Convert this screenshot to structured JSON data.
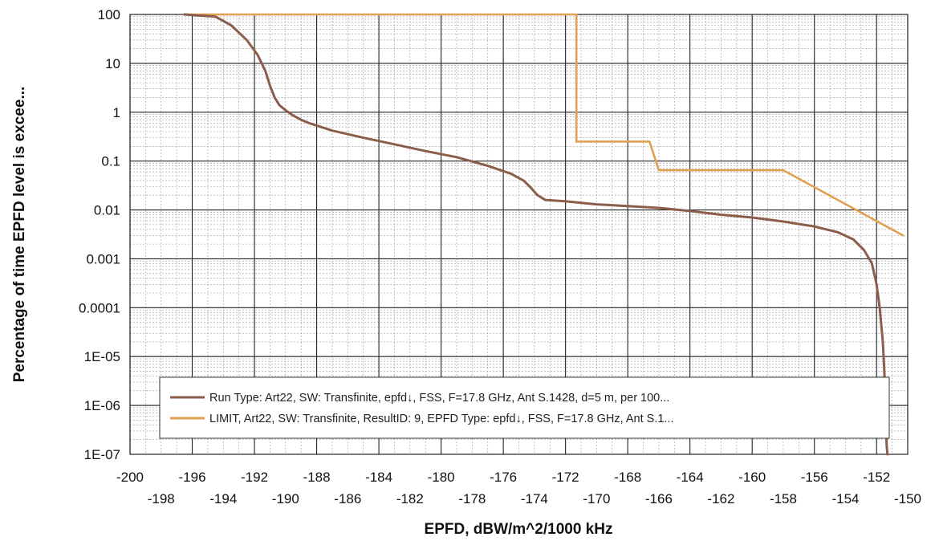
{
  "chart_data": {
    "type": "line",
    "xlabel": "EPFD, dBW/m^2/1000 kHz",
    "ylabel": "Percentage of time EPFD level is excee...",
    "xlim": [
      -200,
      -150
    ],
    "ylim": [
      1e-07,
      100
    ],
    "y_scale": "log",
    "grid": true,
    "legend_position": "bottom-right",
    "x_ticks_upper": [
      "-200",
      "-196",
      "-192",
      "-188",
      "-184",
      "-180",
      "-176",
      "-172",
      "-168",
      "-164",
      "-160",
      "-156",
      "-152"
    ],
    "x_ticks_lower": [
      "-198",
      "-194",
      "-190",
      "-186",
      "-182",
      "-178",
      "-174",
      "-170",
      "-166",
      "-162",
      "-158",
      "-154",
      "-150"
    ],
    "y_ticks": [
      "100",
      "10",
      "1",
      "0.1",
      "0.01",
      "0.001",
      "0.0001",
      "1E-05",
      "1E-06",
      "1E-07"
    ],
    "series": [
      {
        "name": "Run Type: Art22,   SW: Transfinite,  epfd↓, FSS, F=17.8 GHz, Ant S.1428, d=5 m, per 100...",
        "color": "#8B5E4B",
        "x": [
          -196.5,
          -194.5,
          -193.5,
          -192.5,
          -191.8,
          -191.3,
          -191.0,
          -190.7,
          -190.4,
          -190.0,
          -189.5,
          -189.0,
          -188.5,
          -187.0,
          -185.0,
          -183.0,
          -181.0,
          -179.0,
          -177.0,
          -175.5,
          -174.7,
          -174.3,
          -173.8,
          -173.3,
          -172.0,
          -170.0,
          -168.0,
          -166.0,
          -164.0,
          -162.0,
          -160.0,
          -158.0,
          -156.0,
          -154.5,
          -153.5,
          -152.8,
          -152.3,
          -152.0,
          -151.8,
          -151.6,
          -151.5,
          -151.45,
          -151.4,
          -151.35,
          -151.3
        ],
        "y": [
          100,
          90,
          60,
          30,
          15,
          7,
          3.5,
          2,
          1.4,
          1.1,
          0.85,
          0.7,
          0.6,
          0.42,
          0.3,
          0.22,
          0.16,
          0.12,
          0.08,
          0.055,
          0.04,
          0.03,
          0.02,
          0.016,
          0.015,
          0.013,
          0.012,
          0.011,
          0.0095,
          0.008,
          0.007,
          0.0058,
          0.0046,
          0.0035,
          0.0025,
          0.0015,
          0.0008,
          0.0003,
          0.0001,
          2e-05,
          5e-06,
          1e-06,
          4e-07,
          1.5e-07,
          1e-07
        ]
      },
      {
        "name": "LIMIT, Art22, SW: Transfinite, ResultID: 9, EPFD Type: epfd↓, FSS, F=17.8 GHz, Ant S.1...",
        "color": "#E0A050",
        "x": [
          -196.5,
          -171.3,
          -171.3,
          -166.6,
          -166.0,
          -158.0,
          -158.0,
          -150.3
        ],
        "y": [
          100,
          100,
          0.25,
          0.25,
          0.065,
          0.065,
          0.065,
          0.003
        ]
      }
    ]
  }
}
